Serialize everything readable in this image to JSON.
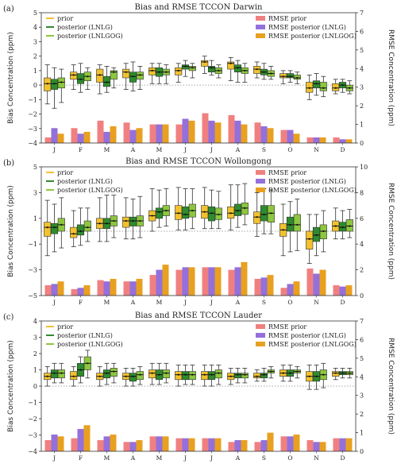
{
  "colors": {
    "prior": "#f2c12e",
    "lnlg": "#2e8b2e",
    "lnlgog": "#8dc63f",
    "rmse_prior": "#f08080",
    "rmse_lnlg": "#9370db",
    "rmse_lnlgog": "#e8a020"
  },
  "chart_data": [
    {
      "type": "box+bar",
      "panel": "(a)",
      "title": "Bias and RMSE TCCON Darwin",
      "ylabel": "Bias Concentration (ppm)",
      "y2label": "RMSE Concentration (ppm)",
      "ylim": [
        -4,
        5
      ],
      "y2lim": [
        0,
        7
      ],
      "months": [
        "J",
        "F",
        "M",
        "A",
        "M",
        "J",
        "J",
        "A",
        "S",
        "O",
        "N",
        "D"
      ],
      "legend_left": [
        "prior",
        "posterior (LNLG)",
        "posterior (LNLGOG)"
      ],
      "legend_right": [
        "RMSE prior",
        "RMSE posterior (LNLG)",
        "RMSE posterior (LNLGOG)"
      ],
      "box_series": [
        {
          "median": [
            0.1,
            0.7,
            0.7,
            0.9,
            1.0,
            1.0,
            1.6,
            1.5,
            1.1,
            0.6,
            -0.2,
            -0.2
          ],
          "q1": [
            -0.4,
            0.4,
            0.2,
            0.5,
            0.7,
            0.7,
            1.3,
            1.1,
            0.8,
            0.5,
            -0.5,
            -0.4
          ],
          "q3": [
            0.5,
            0.9,
            1.1,
            1.1,
            1.2,
            1.2,
            1.7,
            1.6,
            1.3,
            0.8,
            0.2,
            0.1
          ],
          "low": [
            -1.3,
            -0.3,
            -0.6,
            -0.3,
            0.1,
            0.2,
            0.8,
            0.3,
            0.5,
            0.1,
            -1.0,
            -0.6
          ],
          "high": [
            1.4,
            1.4,
            1.4,
            1.5,
            1.5,
            1.5,
            2.0,
            1.9,
            1.6,
            1.0,
            0.7,
            0.4
          ]
        },
        {
          "median": [
            0.1,
            0.4,
            0.2,
            0.6,
            0.9,
            1.3,
            1.2,
            1.2,
            0.9,
            0.6,
            0.1,
            0.0
          ],
          "q1": [
            -0.3,
            0.1,
            -0.1,
            0.2,
            0.6,
            1.1,
            0.9,
            0.9,
            0.7,
            0.5,
            -0.2,
            -0.2
          ],
          "q3": [
            0.4,
            0.8,
            0.6,
            0.9,
            1.2,
            1.4,
            1.3,
            1.4,
            1.1,
            0.8,
            0.3,
            0.2
          ],
          "low": [
            -1.6,
            -0.5,
            -0.5,
            -0.4,
            0.1,
            0.6,
            0.7,
            0.2,
            0.4,
            0.2,
            -0.7,
            -0.5
          ],
          "high": [
            1.2,
            1.5,
            1.3,
            1.6,
            1.5,
            1.7,
            1.7,
            1.7,
            1.5,
            1.0,
            0.8,
            0.4
          ]
        },
        {
          "median": [
            0.2,
            0.6,
            0.9,
            0.7,
            0.9,
            1.2,
            1.0,
            1.0,
            0.8,
            0.5,
            -0.2,
            -0.2
          ],
          "q1": [
            -0.2,
            0.3,
            0.4,
            0.4,
            0.7,
            1.0,
            0.8,
            0.8,
            0.6,
            0.4,
            -0.4,
            -0.4
          ],
          "q3": [
            0.5,
            0.9,
            1.0,
            0.9,
            1.1,
            1.3,
            1.2,
            1.2,
            1.0,
            0.7,
            0.2,
            0.0
          ],
          "low": [
            -1.2,
            -0.3,
            -0.2,
            -0.3,
            0.1,
            0.5,
            0.5,
            0.2,
            0.4,
            0.1,
            -0.8,
            -0.6
          ],
          "high": [
            1.1,
            1.2,
            1.2,
            1.3,
            1.4,
            1.5,
            1.4,
            1.5,
            1.3,
            0.9,
            0.6,
            0.3
          ]
        }
      ],
      "bar_series": [
        [
          0.3,
          0.8,
          1.2,
          1.1,
          1.0,
          1.0,
          1.6,
          1.5,
          1.1,
          0.7,
          0.3,
          0.3
        ],
        [
          0.8,
          0.5,
          0.6,
          0.7,
          1.0,
          1.3,
          1.2,
          1.2,
          0.9,
          0.7,
          0.3,
          0.2
        ],
        [
          0.5,
          0.6,
          0.9,
          0.8,
          1.0,
          1.2,
          1.1,
          1.0,
          0.8,
          0.5,
          0.3,
          0.2
        ]
      ]
    },
    {
      "type": "box+bar",
      "panel": "(b)",
      "title": "Bias and RMSE TCCON Wollongong",
      "ylabel": "Bias Concentration (ppm)",
      "y2label": "RMSE Concentration (ppm)",
      "ylim": [
        -5,
        5
      ],
      "y2lim": [
        0,
        10
      ],
      "months": [
        "J",
        "F",
        "M",
        "A",
        "M",
        "J",
        "J",
        "A",
        "S",
        "O",
        "N",
        "D"
      ],
      "legend_left": [
        "prior",
        "posterior (LNLG)",
        "posterior (LNLGOG)"
      ],
      "legend_right": [
        "RMSE prior",
        "RMSE posterior (LNLG)",
        "RMSE posterior (LNLGOG)"
      ],
      "box_series": [
        {
          "median": [
            0.3,
            -0.2,
            0.6,
            0.8,
            1.2,
            1.4,
            1.5,
            1.4,
            1.1,
            0.1,
            -0.6,
            0.4
          ],
          "q1": [
            -0.4,
            -0.5,
            0.2,
            0.3,
            0.8,
            0.9,
            1.0,
            1.0,
            0.6,
            -0.4,
            -1.4,
            0.0
          ],
          "q3": [
            0.7,
            0.3,
            1.0,
            1.1,
            1.6,
            2.0,
            2.0,
            1.9,
            1.5,
            0.6,
            0.0,
            0.8
          ],
          "low": [
            -1.9,
            -1.2,
            -0.8,
            -0.6,
            0.0,
            0.1,
            0.2,
            0.1,
            -0.4,
            -1.9,
            -2.5,
            -0.6
          ],
          "high": [
            2.4,
            1.6,
            2.6,
            2.6,
            3.3,
            3.4,
            3.4,
            3.6,
            3.0,
            2.1,
            1.3,
            1.8
          ]
        },
        {
          "median": [
            0.3,
            0.0,
            0.6,
            0.8,
            1.5,
            1.3,
            1.4,
            1.6,
            1.3,
            0.5,
            -0.3,
            0.3
          ],
          "q1": [
            -0.2,
            -0.3,
            0.2,
            0.4,
            1.0,
            1.0,
            0.8,
            1.2,
            0.8,
            0.0,
            -0.8,
            0.0
          ],
          "q3": [
            0.6,
            0.5,
            1.0,
            1.1,
            1.8,
            1.9,
            1.9,
            2.1,
            2.0,
            1.1,
            0.3,
            0.7
          ],
          "low": [
            -1.6,
            -1.1,
            -0.8,
            -0.6,
            0.3,
            0.1,
            0.2,
            0.3,
            -0.2,
            -1.6,
            -1.9,
            -0.6
          ],
          "high": [
            2.1,
            1.8,
            2.8,
            2.5,
            3.2,
            3.3,
            3.2,
            3.6,
            3.3,
            2.3,
            1.3,
            1.6
          ]
        },
        {
          "median": [
            0.5,
            0.3,
            0.8,
            0.8,
            1.6,
            1.6,
            1.3,
            1.8,
            1.4,
            0.5,
            0.0,
            0.4
          ],
          "q1": [
            0.0,
            0.0,
            0.4,
            0.4,
            1.2,
            1.1,
            0.9,
            1.3,
            0.7,
            0.0,
            -0.6,
            0.0
          ],
          "q3": [
            1.0,
            0.8,
            1.2,
            1.2,
            2.0,
            2.1,
            1.8,
            2.2,
            2.0,
            1.3,
            0.5,
            0.9
          ],
          "low": [
            -1.3,
            -0.8,
            -0.5,
            -0.5,
            0.4,
            0.2,
            0.2,
            0.5,
            -0.2,
            -1.5,
            -1.6,
            -0.5
          ],
          "high": [
            2.6,
            1.8,
            2.8,
            2.7,
            3.3,
            3.3,
            3.1,
            3.7,
            3.2,
            2.5,
            1.6,
            1.7
          ]
        }
      ],
      "bar_series": [
        [
          0.8,
          0.5,
          1.2,
          1.1,
          1.6,
          2.0,
          2.2,
          2.0,
          1.3,
          0.6,
          2.1,
          0.8
        ],
        [
          0.9,
          0.6,
          1.1,
          1.1,
          2.0,
          2.2,
          2.2,
          2.2,
          1.4,
          0.9,
          1.7,
          0.7
        ],
        [
          1.1,
          0.8,
          1.3,
          1.3,
          2.4,
          2.2,
          2.2,
          2.6,
          1.6,
          1.1,
          2.0,
          0.8
        ]
      ]
    },
    {
      "type": "box+bar",
      "panel": "(c)",
      "title": "Bias and RMSE TCCON Lauder",
      "ylabel": "Bias Concentration (ppm)",
      "y2label": "RMSE Concentration (ppm)",
      "ylim": [
        -4,
        4
      ],
      "y2lim": [
        0,
        7
      ],
      "months": [
        "J",
        "F",
        "M",
        "A",
        "M",
        "J",
        "J",
        "A",
        "S",
        "O",
        "N",
        "D"
      ],
      "legend_left": [
        "prior",
        "posterior (LNLG)",
        "posterior (LNLGOG)"
      ],
      "legend_right": [
        "RMSE prior",
        "RMSE posterior (LNLG)",
        "RMSE posterior (LNLGOG)"
      ],
      "box_series": [
        {
          "median": [
            0.6,
            0.6,
            0.6,
            0.6,
            0.8,
            0.7,
            0.7,
            0.6,
            0.6,
            0.8,
            0.6,
            0.8
          ],
          "q1": [
            0.4,
            0.4,
            0.4,
            0.4,
            0.5,
            0.4,
            0.4,
            0.4,
            0.5,
            0.6,
            0.3,
            0.6
          ],
          "q3": [
            0.8,
            0.9,
            0.8,
            0.8,
            1.0,
            0.9,
            0.9,
            0.8,
            0.8,
            1.0,
            0.9,
            0.9
          ],
          "low": [
            0.0,
            0.0,
            0.0,
            0.0,
            0.1,
            0.0,
            0.0,
            0.1,
            0.3,
            0.3,
            -0.2,
            0.4
          ],
          "high": [
            1.2,
            1.2,
            1.2,
            1.1,
            1.4,
            1.3,
            1.3,
            1.1,
            1.0,
            1.3,
            1.3,
            1.1
          ]
        },
        {
          "median": [
            0.8,
            1.0,
            0.8,
            0.6,
            0.7,
            0.7,
            0.7,
            0.7,
            0.7,
            0.8,
            0.6,
            0.8
          ],
          "q1": [
            0.5,
            0.6,
            0.5,
            0.3,
            0.4,
            0.4,
            0.4,
            0.5,
            0.5,
            0.6,
            0.3,
            0.7
          ],
          "q3": [
            1.0,
            1.4,
            1.0,
            0.8,
            1.0,
            0.9,
            0.9,
            0.8,
            0.8,
            1.0,
            0.9,
            0.9
          ],
          "low": [
            0.2,
            0.2,
            0.1,
            0.0,
            0.1,
            0.1,
            0.0,
            0.2,
            0.3,
            0.3,
            -0.2,
            0.5
          ],
          "high": [
            1.4,
            1.8,
            1.4,
            1.1,
            1.4,
            1.3,
            1.3,
            1.1,
            1.1,
            1.3,
            1.3,
            1.1
          ]
        },
        {
          "median": [
            0.8,
            1.4,
            0.9,
            0.7,
            0.8,
            0.7,
            0.8,
            0.7,
            0.9,
            0.9,
            0.7,
            0.8
          ],
          "q1": [
            0.5,
            1.0,
            0.6,
            0.4,
            0.5,
            0.4,
            0.5,
            0.5,
            0.8,
            0.8,
            0.4,
            0.7
          ],
          "q3": [
            1.0,
            1.8,
            1.1,
            0.9,
            1.0,
            0.9,
            1.0,
            0.8,
            1.0,
            1.0,
            1.0,
            0.9
          ],
          "low": [
            0.2,
            0.5,
            0.2,
            0.1,
            0.2,
            0.1,
            0.1,
            0.2,
            0.5,
            0.5,
            -0.1,
            0.5
          ],
          "high": [
            1.4,
            2.2,
            1.4,
            1.2,
            1.4,
            1.3,
            1.3,
            1.1,
            1.2,
            1.2,
            1.4,
            1.1
          ]
        }
      ],
      "bar_series": [
        [
          0.6,
          0.7,
          0.6,
          0.5,
          0.8,
          0.7,
          0.7,
          0.5,
          0.5,
          0.8,
          0.6,
          0.7
        ],
        [
          0.9,
          1.2,
          0.8,
          0.5,
          0.8,
          0.7,
          0.7,
          0.6,
          0.6,
          0.8,
          0.5,
          0.7
        ],
        [
          0.8,
          1.4,
          0.9,
          0.6,
          0.8,
          0.7,
          0.7,
          0.6,
          1.0,
          0.9,
          0.5,
          0.7
        ]
      ]
    }
  ]
}
